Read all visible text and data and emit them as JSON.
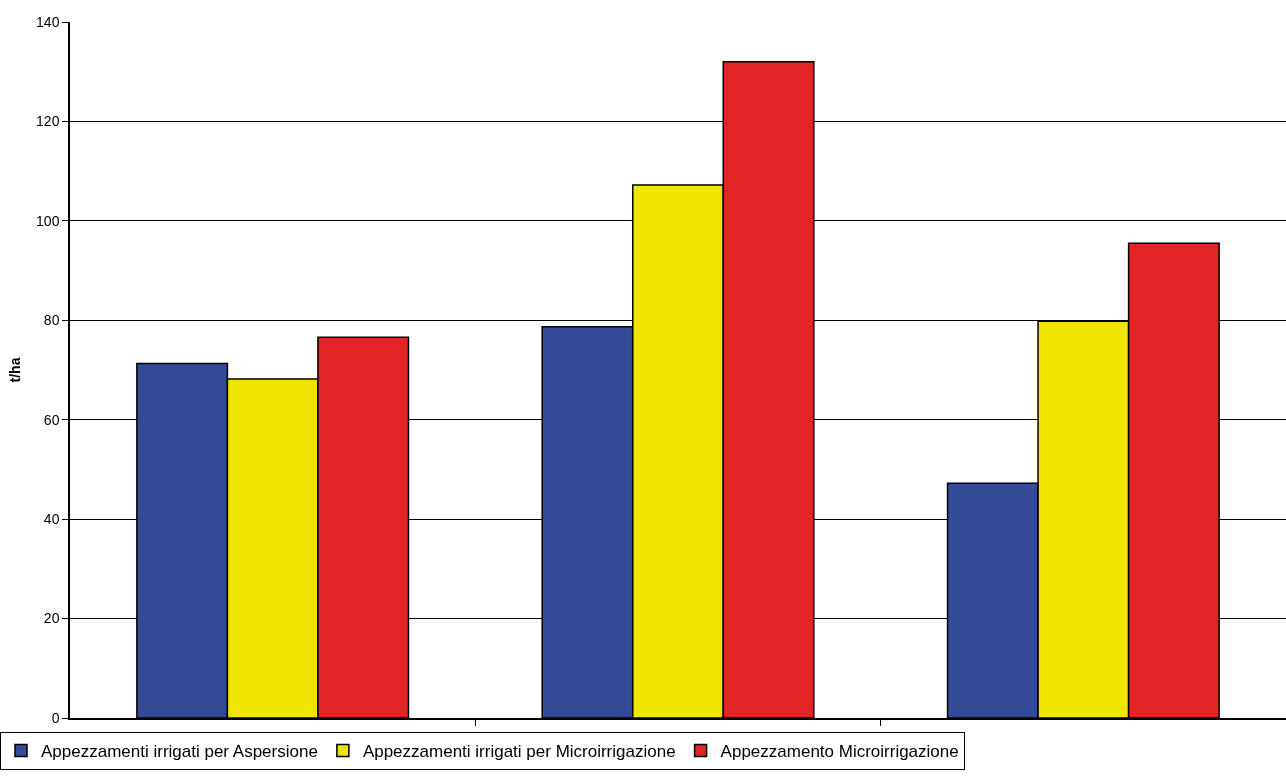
{
  "chart_data": {
    "type": "bar",
    "ylabel": "t/ha",
    "categories": [
      null,
      null,
      null
    ],
    "series": [
      {
        "name": "Appezzamenti irrigati per Aspersione",
        "color": "#344b98",
        "values": [
          71.3,
          78.7,
          47.2
        ]
      },
      {
        "name": "Appezzamenti irrigati per Microirrigazione",
        "color": "#f0e500",
        "values": [
          68.2,
          107.2,
          79.8
        ]
      },
      {
        "name": "Appezzamento Microirrigazione",
        "color": "#e32424",
        "values": [
          76.6,
          132.0,
          95.5
        ]
      }
    ],
    "ylim": [
      0,
      140
    ],
    "yticks": [
      0,
      20,
      40,
      60,
      80,
      100,
      120,
      140
    ],
    "grid": "y",
    "legend": "bottom"
  }
}
